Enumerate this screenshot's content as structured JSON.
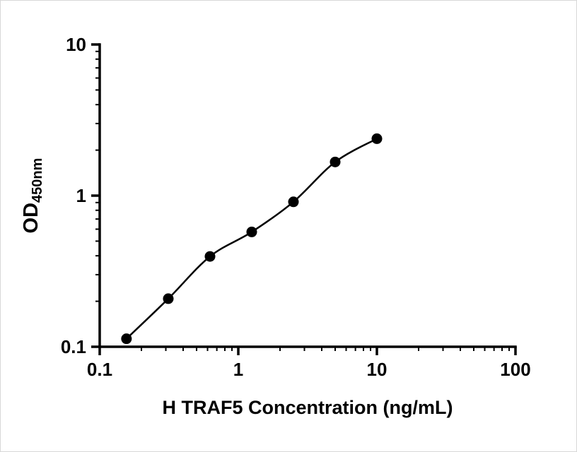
{
  "figure": {
    "background_color": "#ffffff",
    "axis_color": "#000000",
    "marker_color": "#000000",
    "curve_color": "#000000"
  },
  "chart_data": {
    "type": "scatter",
    "title": "",
    "xlabel": "H TRAF5 Concentration (ng/mL)",
    "ylabel_main": "OD",
    "ylabel_sub": "450nm",
    "x_scale": "log",
    "y_scale": "log",
    "xlim": [
      0.1,
      100
    ],
    "ylim": [
      0.1,
      10
    ],
    "x_ticks": [
      0.1,
      1,
      10,
      100
    ],
    "y_ticks": [
      0.1,
      1,
      10
    ],
    "x_tick_labels": [
      "0.1",
      "1",
      "10",
      "100"
    ],
    "y_tick_labels": [
      "0.1",
      "1",
      "10"
    ],
    "grid": false,
    "legend": false,
    "series": [
      {
        "name": "standard-curve",
        "x": [
          0.156,
          0.3125,
          0.625,
          1.25,
          2.5,
          5,
          10
        ],
        "y": [
          0.113,
          0.208,
          0.396,
          0.575,
          0.91,
          1.67,
          2.38
        ]
      }
    ]
  }
}
